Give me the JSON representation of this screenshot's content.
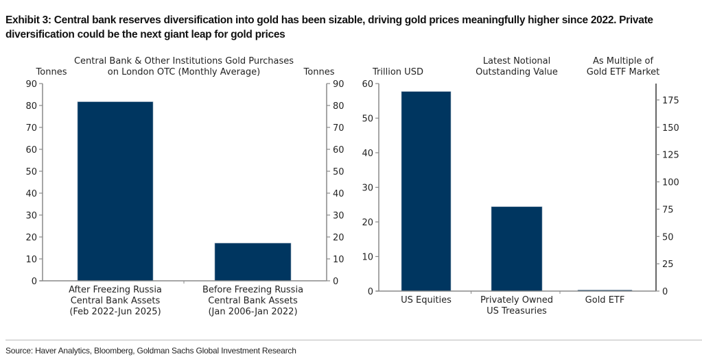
{
  "title": "Exhibit 3: Central bank reserves diversification into gold has been sizable, driving gold prices meaningfully higher since 2022. Private diversification could be the next giant leap for gold prices",
  "source": "Source: Haver Analytics, Bloomberg, Goldman Sachs Global Investment Research",
  "colors": {
    "bar": "#003660",
    "axis": "#888888"
  },
  "chart_data": [
    {
      "type": "bar",
      "title": [
        "Central Bank & Other Institutions Gold Purchases",
        "on London OTC (Monthly Average)"
      ],
      "ylabel": "Tonnes",
      "ylabel_right": "Tonnes",
      "categories": [
        [
          "After Freezing Russia",
          "Central Bank Assets",
          "(Feb 2022-Jun 2025)"
        ],
        [
          "Before Freezing Russia",
          "Central Bank Assets",
          "(Jan 2006-Jan 2022)"
        ]
      ],
      "values": [
        81.7,
        17.2
      ],
      "ylim": [
        0,
        90
      ],
      "yticks": [
        0,
        10,
        20,
        30,
        40,
        50,
        60,
        70,
        80,
        90
      ],
      "yticks_right": [
        0,
        10,
        20,
        30,
        40,
        50,
        60,
        70,
        80,
        90
      ]
    },
    {
      "type": "bar",
      "title": [
        "Latest Notional",
        "Outstanding Value"
      ],
      "ylabel": "Trillion USD",
      "ylabel_right": [
        "As Multiple of",
        "Gold ETF Market"
      ],
      "categories": [
        [
          "US Equities"
        ],
        [
          "Privately Owned",
          "US Treasuries"
        ],
        [
          "Gold ETF"
        ]
      ],
      "values": [
        57.7,
        24.4,
        0.3
      ],
      "ylim": [
        0,
        60
      ],
      "yticks": [
        0,
        10,
        20,
        30,
        40,
        50,
        60
      ],
      "ylim_right": [
        0,
        190
      ],
      "yticks_right": [
        0,
        25,
        50,
        75,
        100,
        125,
        150,
        175
      ]
    }
  ]
}
